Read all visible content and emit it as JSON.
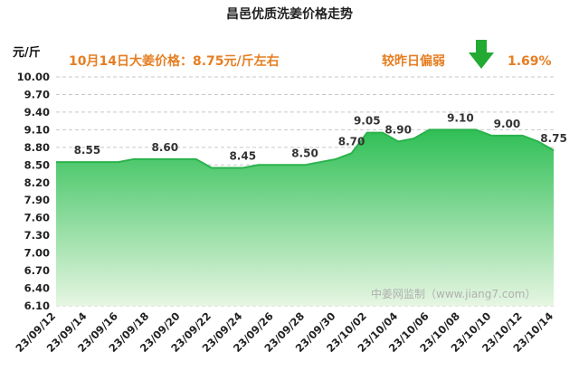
{
  "chart_data": {
    "type": "area",
    "title": "昌邑优质洗姜价格走势",
    "ylabel": "元/斤",
    "xlabel": "",
    "ylim": [
      6.1,
      10.0
    ],
    "yticks": [
      "10.00",
      "9.70",
      "9.40",
      "9.10",
      "8.80",
      "8.50",
      "8.20",
      "7.90",
      "7.60",
      "7.30",
      "7.00",
      "6.70",
      "6.40",
      "6.10"
    ],
    "grid": "horizontal-dashed",
    "x": [
      "23/09/12",
      "23/09/13",
      "23/09/14",
      "23/09/15",
      "23/09/16",
      "23/09/17",
      "23/09/18",
      "23/09/19",
      "23/09/20",
      "23/09/21",
      "23/09/22",
      "23/09/23",
      "23/09/24",
      "23/09/25",
      "23/09/26",
      "23/09/27",
      "23/09/28",
      "23/09/29",
      "23/09/30",
      "23/10/01",
      "23/10/02",
      "23/10/03",
      "23/10/04",
      "23/10/05",
      "23/10/06",
      "23/10/07",
      "23/10/08",
      "23/10/09",
      "23/10/10",
      "23/10/11",
      "23/10/12",
      "23/10/13",
      "23/10/14"
    ],
    "xtick_labels": [
      "23/09/12",
      "23/09/14",
      "23/09/16",
      "23/09/18",
      "23/09/20",
      "23/09/22",
      "23/09/24",
      "23/09/26",
      "23/09/28",
      "23/09/30",
      "23/10/02",
      "23/10/04",
      "23/10/06",
      "23/10/08",
      "23/10/10",
      "23/10/12",
      "23/10/14"
    ],
    "series": [
      {
        "values": [
          8.55,
          8.55,
          8.55,
          8.55,
          8.55,
          8.6,
          8.6,
          8.6,
          8.6,
          8.6,
          8.45,
          8.45,
          8.45,
          8.5,
          8.5,
          8.5,
          8.5,
          8.55,
          8.6,
          8.7,
          9.05,
          9.05,
          8.9,
          8.95,
          9.1,
          9.1,
          9.1,
          9.1,
          9.0,
          9.0,
          9.0,
          8.9,
          8.75
        ]
      }
    ],
    "annotations": [
      {
        "index": 2,
        "text": "8.55"
      },
      {
        "index": 7,
        "text": "8.60"
      },
      {
        "index": 12,
        "text": "8.45"
      },
      {
        "index": 16,
        "text": "8.50"
      },
      {
        "index": 19,
        "text": "8.70"
      },
      {
        "index": 20,
        "text": "9.05"
      },
      {
        "index": 22,
        "text": "8.90"
      },
      {
        "index": 26,
        "text": "9.10"
      },
      {
        "index": 29,
        "text": "9.00"
      },
      {
        "index": 32,
        "text": "8.75"
      }
    ],
    "headline": {
      "price_text": "10月14日大姜价格：8.75元/斤左右",
      "change_label": "较昨日偏弱",
      "change_value": "1.69%",
      "direction": "down"
    },
    "watermark": "中姜网监制（www.jiang7.com）",
    "colors": {
      "line": "#2bb24c",
      "fill_top": "#2fbf55",
      "fill_bottom": "#e6f6e2",
      "headline_text": "#e67e22",
      "arrow": "#22aa33"
    }
  }
}
